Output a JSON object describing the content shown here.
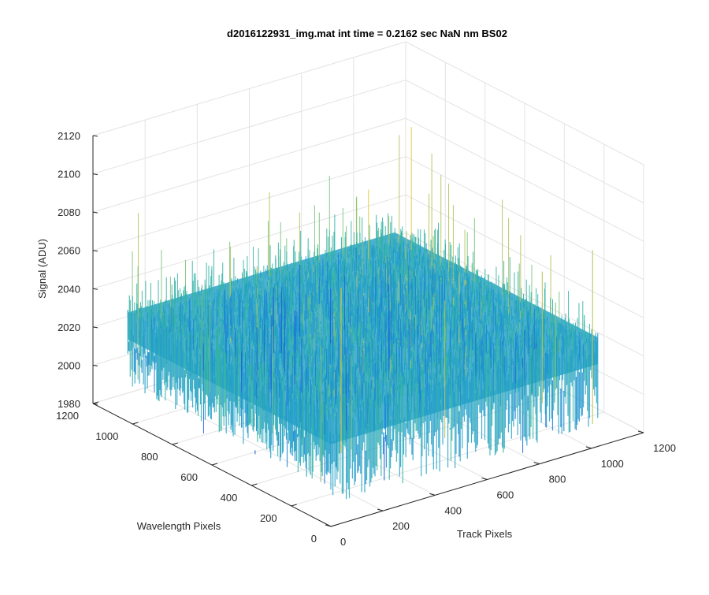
{
  "chart_data": {
    "type": "surface",
    "title": "d2016122931_img.mat int time = 0.2162 sec  NaN nm BS02",
    "xlabel": "Track Pixels",
    "ylabel": "Wavelength Pixels",
    "zlabel": "Signal (ADU)",
    "x_range": [
      0,
      1200
    ],
    "y_range": [
      0,
      1200
    ],
    "z_range": [
      1980,
      2120
    ],
    "x_ticks": [
      "0",
      "200",
      "400",
      "600",
      "800",
      "1000",
      "1200"
    ],
    "y_ticks": [
      "0",
      "200",
      "400",
      "600",
      "800",
      "1000",
      "1200"
    ],
    "z_ticks": [
      "1980",
      "2000",
      "2020",
      "2040",
      "2060",
      "2080",
      "2100",
      "2120"
    ],
    "grid": true,
    "colormap": "parula",
    "data_extent": {
      "track_pixels": [
        0,
        1024
      ],
      "wavelength_pixels": [
        0,
        1024
      ]
    },
    "signal_baseline": 2035,
    "signal_noise_range": [
      1985,
      2115
    ]
  }
}
